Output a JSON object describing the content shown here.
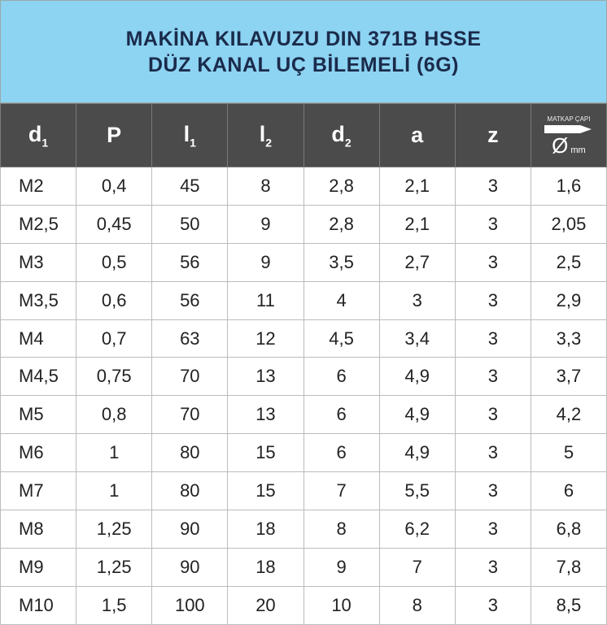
{
  "title": [
    "MAKİNA KILAVUZU DIN 371B HSSE",
    "DÜZ KANAL UÇ BİLEMELİ (6G)"
  ],
  "header": [
    {
      "text": "d",
      "sub": "1"
    },
    {
      "text": "P"
    },
    {
      "text": "l",
      "sub": "1"
    },
    {
      "text": "l",
      "sub": "2"
    },
    {
      "text": "d",
      "sub": "2"
    },
    {
      "text": "a"
    },
    {
      "text": "z"
    },
    {
      "caption": "MATKAP ÇAPI",
      "symbol": "Ø",
      "unit": "mm"
    }
  ],
  "rows": [
    [
      "M2",
      "0,4",
      "45",
      "8",
      "2,8",
      "2,1",
      "3",
      "1,6"
    ],
    [
      "M2,5",
      "0,45",
      "50",
      "9",
      "2,8",
      "2,1",
      "3",
      "2,05"
    ],
    [
      "M3",
      "0,5",
      "56",
      "9",
      "3,5",
      "2,7",
      "3",
      "2,5"
    ],
    [
      "M3,5",
      "0,6",
      "56",
      "11",
      "4",
      "3",
      "3",
      "2,9"
    ],
    [
      "M4",
      "0,7",
      "63",
      "12",
      "4,5",
      "3,4",
      "3",
      "3,3"
    ],
    [
      "M4,5",
      "0,75",
      "70",
      "13",
      "6",
      "4,9",
      "3",
      "3,7"
    ],
    [
      "M5",
      "0,8",
      "70",
      "13",
      "6",
      "4,9",
      "3",
      "4,2"
    ],
    [
      "M6",
      "1",
      "80",
      "15",
      "6",
      "4,9",
      "3",
      "5"
    ],
    [
      "M7",
      "1",
      "80",
      "15",
      "7",
      "5,5",
      "3",
      "6"
    ],
    [
      "M8",
      "1,25",
      "90",
      "18",
      "8",
      "6,2",
      "3",
      "6,8"
    ],
    [
      "M9",
      "1,25",
      "90",
      "18",
      "9",
      "7",
      "3",
      "7,8"
    ],
    [
      "M10",
      "1,5",
      "100",
      "20",
      "10",
      "8",
      "3",
      "8,5"
    ]
  ]
}
